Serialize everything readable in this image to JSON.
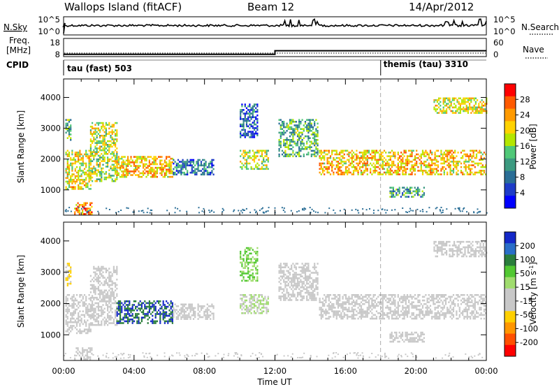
{
  "header": {
    "site": "Wallops Island (fitACF)",
    "beam": "Beam 12",
    "date": "14/Apr/2012"
  },
  "noise_panel": {
    "left_label": "N.Sky",
    "right_label": "N.Search",
    "ticks_left": [
      "10^5",
      "10^0"
    ],
    "ticks_right": [
      "10^5",
      "10^0"
    ]
  },
  "freq_panel": {
    "left_label_line1": "Freq.",
    "left_label_line2": "[MHz]",
    "right_label": "Nave",
    "ticks_left": [
      "18",
      "8"
    ],
    "ticks_right": [
      "60",
      "0"
    ]
  },
  "cpid_panel": {
    "label": "CPID",
    "modes": [
      {
        "name": "tau (fast) 503",
        "start_hour": 0
      },
      {
        "name": "themis (tau) 3310",
        "start_hour": 18
      }
    ]
  },
  "power_colorbar": {
    "label": "Power [dB]",
    "ticks": [
      "28",
      "24",
      "20",
      "16",
      "12",
      "8",
      "4"
    ],
    "colors": [
      "#ff0000",
      "#ff5a00",
      "#ff9a00",
      "#ffd200",
      "#b4e600",
      "#50c878",
      "#3c9a80",
      "#2a6e96",
      "#1e3cc8",
      "#0000ff"
    ]
  },
  "velocity_colorbar": {
    "label_prefix": "Velocity [m s",
    "label_sup": "-1",
    "label_suffix": "]",
    "ticks": [
      "200",
      "100",
      "50",
      "15",
      "-15",
      "-50",
      "-100",
      "-200"
    ],
    "colors": [
      "#1428c8",
      "#2a6ec8",
      "#2a7e3c",
      "#52c832",
      "#a0dc6e",
      "#c8c8c8",
      "#c8c8c8",
      "#ffd000",
      "#ff9600",
      "#ff5000",
      "#ff0000"
    ]
  },
  "chart_data": {
    "type": "heatmap",
    "xlabel": "Time UT",
    "x_ticks": [
      "00:00",
      "04:00",
      "08:00",
      "12:00",
      "16:00",
      "20:00",
      "00:00"
    ],
    "xlim_hours": [
      0,
      24
    ],
    "ylabel": "Slant Range [km]",
    "y_ticks": [
      1000,
      2000,
      3000,
      4000
    ],
    "ylim_km": [
      180,
      4600
    ],
    "frequency_mhz": [
      {
        "from_hour": 0,
        "to_hour": 12,
        "value": 10
      },
      {
        "from_hour": 12,
        "to_hour": 24,
        "value": 12
      }
    ],
    "echo_regions": [
      {
        "t0": 0.1,
        "t1": 1.5,
        "r0": 1050,
        "r1": 2300,
        "power_db": 20,
        "velocity": -15
      },
      {
        "t0": 1.5,
        "t1": 3.0,
        "r0": 1300,
        "r1": 3200,
        "power_db": 18,
        "velocity": -15
      },
      {
        "t0": 0.1,
        "t1": 0.4,
        "r0": 2600,
        "r1": 3300,
        "power_db": 14,
        "velocity": -50
      },
      {
        "t0": 3.0,
        "t1": 6.2,
        "r0": 1400,
        "r1": 2100,
        "power_db": 22,
        "velocity": 200
      },
      {
        "t0": 6.2,
        "t1": 8.5,
        "r0": 1500,
        "r1": 2000,
        "power_db": 10,
        "velocity": -15
      },
      {
        "t0": 10.0,
        "t1": 11.6,
        "r0": 1700,
        "r1": 2300,
        "power_db": 18,
        "velocity": 15
      },
      {
        "t0": 10.0,
        "t1": 11.0,
        "r0": 2700,
        "r1": 3800,
        "power_db": 8,
        "velocity": 50
      },
      {
        "t0": 12.2,
        "t1": 14.4,
        "r0": 2100,
        "r1": 3300,
        "power_db": 14,
        "velocity": -15
      },
      {
        "t0": 14.5,
        "t1": 24.0,
        "r0": 1500,
        "r1": 2300,
        "power_db": 22,
        "velocity": -15
      },
      {
        "t0": 18.5,
        "t1": 20.5,
        "r0": 800,
        "r1": 1100,
        "power_db": 12,
        "velocity": -15
      },
      {
        "t0": 21.0,
        "t1": 24.0,
        "r0": 3500,
        "r1": 4000,
        "power_db": 20,
        "velocity": -15
      },
      {
        "t0": 0.6,
        "t1": 1.6,
        "r0": 200,
        "r1": 600,
        "power_db": 24,
        "velocity": -15
      }
    ]
  }
}
